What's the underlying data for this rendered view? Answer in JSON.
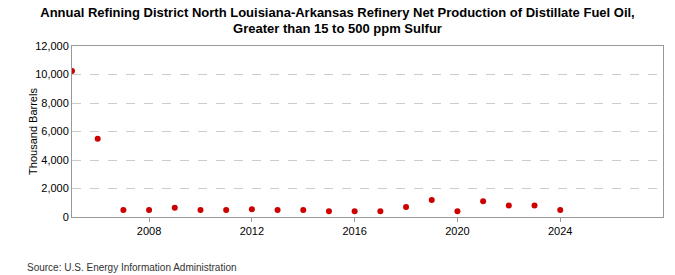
{
  "chart_data": {
    "type": "scatter",
    "title": "Annual Refining District North Louisiana-Arkansas Refinery Net Production of Distillate Fuel Oil,\nGreater than 15 to 500 ppm Sulfur",
    "y_label": "Thousand Barrels",
    "annotations": [
      "Source: U.S. Energy Information Administration"
    ],
    "x": [
      2005,
      2006,
      2007,
      2008,
      2009,
      2010,
      2011,
      2012,
      2013,
      2014,
      2015,
      2016,
      2017,
      2018,
      2019,
      2020,
      2021,
      2022,
      2023,
      2024
    ],
    "values": [
      10250,
      5500,
      500,
      500,
      650,
      500,
      500,
      550,
      500,
      500,
      400,
      400,
      400,
      700,
      1200,
      400,
      1100,
      800,
      800,
      500
    ],
    "color": "#cc0000",
    "marker": "circle",
    "xlim": [
      2005,
      2028
    ],
    "xticks": [
      2008,
      2012,
      2016,
      2020,
      2024
    ],
    "ylim": [
      0,
      12000
    ],
    "yticks": [
      0,
      {
        "value": 2000,
        "label": "2,000"
      },
      {
        "value": 4000,
        "label": "4,000"
      },
      {
        "value": 6000,
        "label": "6,000"
      },
      {
        "value": 8000,
        "label": "8,000"
      },
      {
        "value": 10000,
        "label": "10,000"
      },
      {
        "value": 12000,
        "label": "12,000"
      }
    ],
    "grid": true
  }
}
